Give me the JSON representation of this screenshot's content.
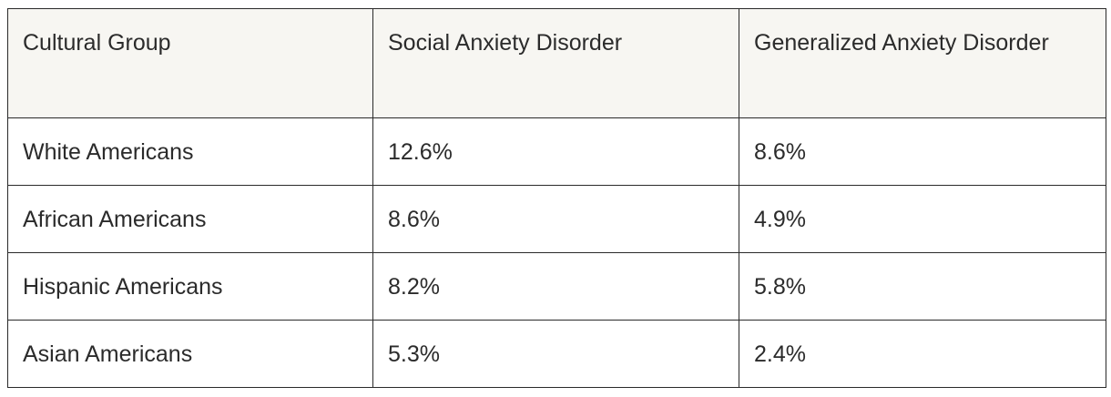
{
  "table": {
    "headers": [
      "Cultural Group",
      "Social Anxiety Disorder",
      "Generalized Anxiety Disorder"
    ],
    "rows": [
      [
        "White Americans",
        "12.6%",
        "8.6%"
      ],
      [
        "African Americans",
        "8.6%",
        "4.9%"
      ],
      [
        "Hispanic Americans",
        "8.2%",
        "5.8%"
      ],
      [
        "Asian Americans",
        "5.3%",
        "2.4%"
      ]
    ]
  },
  "colors": {
    "header_background": "#f7f6f2",
    "border": "#2a2a2a",
    "text": "#2b2b2b",
    "body_background": "#ffffff"
  }
}
